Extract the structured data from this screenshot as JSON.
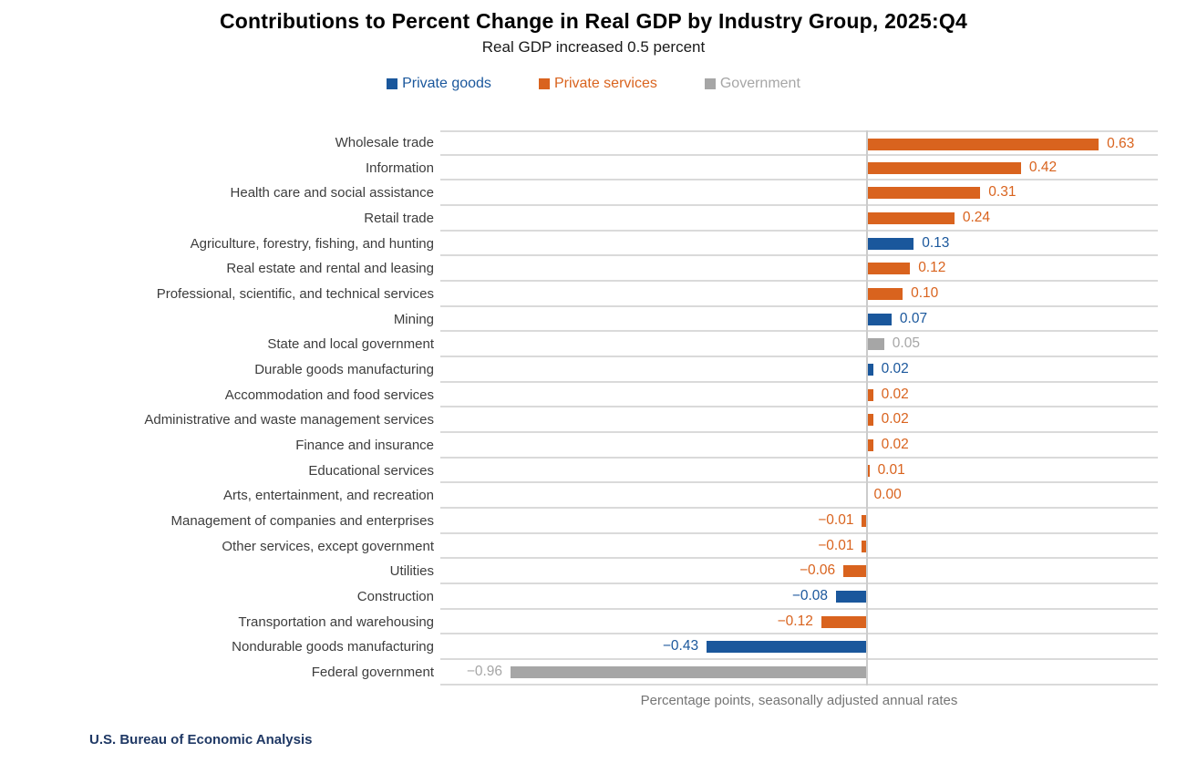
{
  "title": "Contributions to Percent Change in Real GDP by Industry Group, 2025:Q4",
  "subtitle": "Real GDP increased 0.5 percent",
  "axis_caption": "Percentage points, seasonally adjusted annual rates",
  "source": "U.S. Bureau of Economic Analysis",
  "colors": {
    "private_goods": "#1a579c",
    "private_services": "#d9631e",
    "government": "#a6a6a6"
  },
  "chart_data": {
    "type": "bar",
    "orientation": "horizontal",
    "title": "Contributions to Percent Change in Real GDP by Industry Group, 2025:Q4",
    "subtitle": "Real GDP increased 0.5 percent",
    "xlabel": "Percentage points, seasonally adjusted annual rates",
    "axis_min": -1.15,
    "axis_max": 0.79,
    "grid": "horizontal row separator lines, vertical zero axis line",
    "legend_position": "top-center",
    "legend": [
      {
        "name": "Private goods",
        "series": "private_goods",
        "color": "#1a579c"
      },
      {
        "name": "Private services",
        "series": "private_services",
        "color": "#d9631e"
      },
      {
        "name": "Government",
        "series": "government",
        "color": "#a6a6a6"
      }
    ],
    "bars": [
      {
        "category": "Wholesale trade",
        "value": 0.63,
        "label": "0.63",
        "series": "private_services"
      },
      {
        "category": "Information",
        "value": 0.42,
        "label": "0.42",
        "series": "private_services"
      },
      {
        "category": "Health care and social assistance",
        "value": 0.31,
        "label": "0.31",
        "series": "private_services"
      },
      {
        "category": "Retail trade",
        "value": 0.24,
        "label": "0.24",
        "series": "private_services"
      },
      {
        "category": "Agriculture, forestry, fishing, and hunting",
        "value": 0.13,
        "label": "0.13",
        "series": "private_goods"
      },
      {
        "category": "Real estate and rental and leasing",
        "value": 0.12,
        "label": "0.12",
        "series": "private_services"
      },
      {
        "category": "Professional, scientific, and technical services",
        "value": 0.1,
        "label": "0.10",
        "series": "private_services"
      },
      {
        "category": "Mining",
        "value": 0.07,
        "label": "0.07",
        "series": "private_goods"
      },
      {
        "category": "State and local government",
        "value": 0.05,
        "label": "0.05",
        "series": "government"
      },
      {
        "category": "Durable goods manufacturing",
        "value": 0.02,
        "label": "0.02",
        "series": "private_goods"
      },
      {
        "category": "Accommodation and food services",
        "value": 0.02,
        "label": "0.02",
        "series": "private_services"
      },
      {
        "category": "Administrative and waste management services",
        "value": 0.02,
        "label": "0.02",
        "series": "private_services"
      },
      {
        "category": "Finance and insurance",
        "value": 0.02,
        "label": "0.02",
        "series": "private_services"
      },
      {
        "category": "Educational services",
        "value": 0.01,
        "label": "0.01",
        "series": "private_services"
      },
      {
        "category": "Arts, entertainment, and recreation",
        "value": 0.0,
        "label": "0.00",
        "series": "private_services"
      },
      {
        "category": "Management of companies and enterprises",
        "value": -0.01,
        "label": "−0.01",
        "series": "private_services"
      },
      {
        "category": "Other services, except government",
        "value": -0.01,
        "label": "−0.01",
        "series": "private_services"
      },
      {
        "category": "Utilities",
        "value": -0.06,
        "label": "−0.06",
        "series": "private_services"
      },
      {
        "category": "Construction",
        "value": -0.08,
        "label": "−0.08",
        "series": "private_goods"
      },
      {
        "category": "Transportation and warehousing",
        "value": -0.12,
        "label": "−0.12",
        "series": "private_services"
      },
      {
        "category": "Nondurable goods manufacturing",
        "value": -0.43,
        "label": "−0.43",
        "series": "private_goods"
      },
      {
        "category": "Federal government",
        "value": -0.96,
        "label": "−0.96",
        "series": "government"
      }
    ]
  }
}
